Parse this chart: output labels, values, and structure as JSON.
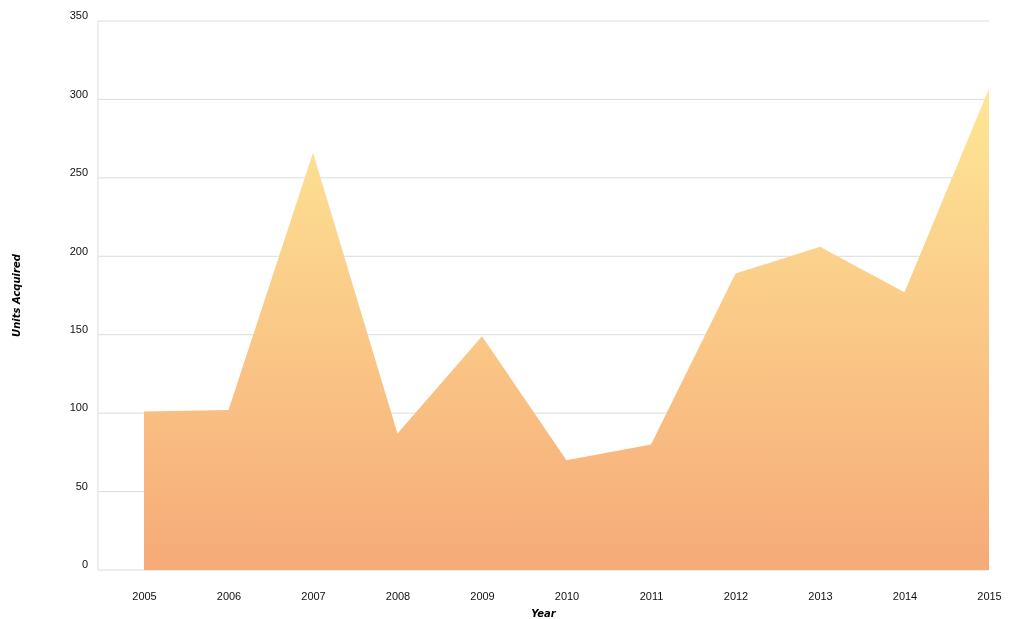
{
  "chart_data": {
    "type": "area",
    "xlabel": "Year",
    "ylabel": "Units Acquired",
    "categories": [
      "2005",
      "2006",
      "2007",
      "2008",
      "2009",
      "2010",
      "2011",
      "2012",
      "2013",
      "2014",
      "2015"
    ],
    "series": [
      {
        "color": "#f6aa78",
        "values": [
          101,
          102,
          266,
          87,
          149,
          70,
          80,
          189,
          206,
          177,
          307
        ]
      }
    ],
    "ylim": [
      0,
      350
    ],
    "yticks": [
      0,
      50,
      100,
      150,
      200,
      250,
      300,
      350
    ],
    "grid": "y"
  }
}
